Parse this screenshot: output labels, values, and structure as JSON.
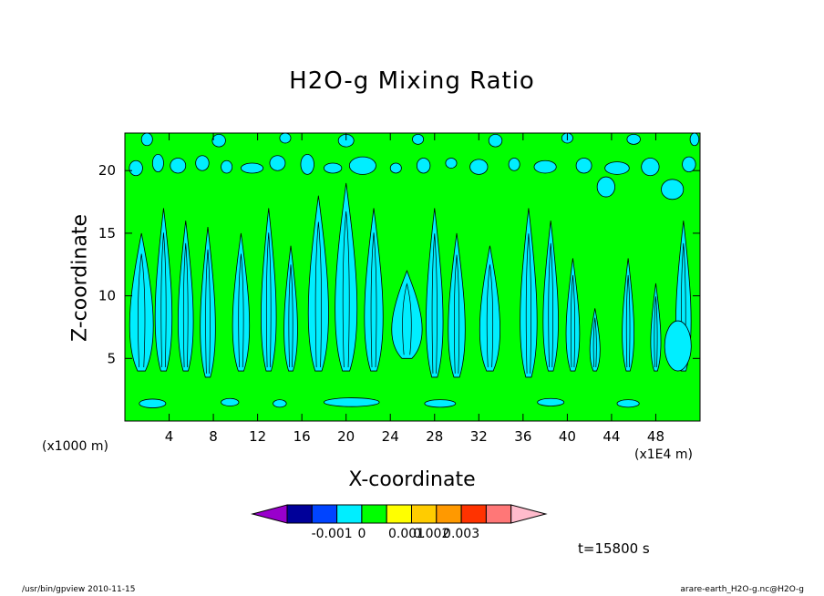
{
  "chart_data": {
    "type": "contour",
    "title": "H2O-g Mixing Ratio",
    "xlabel": "X-coordinate",
    "ylabel": "Z-coordinate",
    "x_unit_label": "(x1000 m)",
    "x_scale_label": "(x1E4 m)",
    "xlim": [
      0,
      52
    ],
    "ylim": [
      0,
      23
    ],
    "x_ticks": [
      4,
      8,
      12,
      16,
      20,
      24,
      28,
      32,
      36,
      40,
      44,
      48
    ],
    "y_ticks": [
      5,
      10,
      15,
      20
    ],
    "background_level_color": "#00ff00",
    "feature_color": "#00eeff",
    "colorbar": {
      "colors": [
        "#9900cc",
        "#000099",
        "#0044ff",
        "#00eeff",
        "#00ff00",
        "#ffff00",
        "#ffcc00",
        "#ff9900",
        "#ff3300",
        "#ff7777",
        "#ffbbcc"
      ],
      "labels": [
        "-0.001",
        "0",
        "0.001",
        "0.002",
        "0.003"
      ]
    },
    "plumes": [
      {
        "x": 1.5,
        "base": 4,
        "top": 15,
        "w": 1.4
      },
      {
        "x": 3.5,
        "base": 4,
        "top": 17,
        "w": 1.0
      },
      {
        "x": 5.5,
        "base": 4,
        "top": 16,
        "w": 0.9
      },
      {
        "x": 7.5,
        "base": 3.5,
        "top": 15.5,
        "w": 0.9
      },
      {
        "x": 10.5,
        "base": 4,
        "top": 15,
        "w": 1.0
      },
      {
        "x": 13.0,
        "base": 4,
        "top": 17,
        "w": 0.9
      },
      {
        "x": 15.0,
        "base": 4,
        "top": 14,
        "w": 0.8
      },
      {
        "x": 17.5,
        "base": 4,
        "top": 18,
        "w": 1.2
      },
      {
        "x": 20.0,
        "base": 4,
        "top": 19,
        "w": 1.3
      },
      {
        "x": 22.5,
        "base": 4,
        "top": 17,
        "w": 1.1
      },
      {
        "x": 25.5,
        "base": 5,
        "top": 12,
        "w": 1.8
      },
      {
        "x": 28.0,
        "base": 3.5,
        "top": 17,
        "w": 1.0
      },
      {
        "x": 30.0,
        "base": 3.5,
        "top": 15,
        "w": 1.0
      },
      {
        "x": 33.0,
        "base": 4,
        "top": 14,
        "w": 1.2
      },
      {
        "x": 36.5,
        "base": 3.5,
        "top": 17,
        "w": 1.0
      },
      {
        "x": 38.5,
        "base": 4,
        "top": 16,
        "w": 0.9
      },
      {
        "x": 40.5,
        "base": 4,
        "top": 13,
        "w": 0.8
      },
      {
        "x": 42.5,
        "base": 4,
        "top": 9,
        "w": 0.6
      },
      {
        "x": 45.5,
        "base": 4,
        "top": 13,
        "w": 0.7
      },
      {
        "x": 48.0,
        "base": 4,
        "top": 11,
        "w": 0.6
      },
      {
        "x": 50.5,
        "base": 4,
        "top": 16,
        "w": 0.9
      }
    ],
    "patches": [
      {
        "x": 1.0,
        "y": 20.2,
        "rx": 0.6,
        "ry": 0.6
      },
      {
        "x": 3.0,
        "y": 20.6,
        "rx": 0.5,
        "ry": 0.7
      },
      {
        "x": 4.8,
        "y": 20.4,
        "rx": 0.7,
        "ry": 0.6
      },
      {
        "x": 7.0,
        "y": 20.6,
        "rx": 0.6,
        "ry": 0.6
      },
      {
        "x": 9.2,
        "y": 20.3,
        "rx": 0.5,
        "ry": 0.5
      },
      {
        "x": 11.5,
        "y": 20.2,
        "rx": 1.0,
        "ry": 0.4
      },
      {
        "x": 13.8,
        "y": 20.6,
        "rx": 0.7,
        "ry": 0.6
      },
      {
        "x": 16.5,
        "y": 20.5,
        "rx": 0.6,
        "ry": 0.8
      },
      {
        "x": 18.8,
        "y": 20.2,
        "rx": 0.8,
        "ry": 0.4
      },
      {
        "x": 21.5,
        "y": 20.4,
        "rx": 1.2,
        "ry": 0.7
      },
      {
        "x": 24.5,
        "y": 20.2,
        "rx": 0.5,
        "ry": 0.4
      },
      {
        "x": 27.0,
        "y": 20.4,
        "rx": 0.6,
        "ry": 0.6
      },
      {
        "x": 29.5,
        "y": 20.6,
        "rx": 0.5,
        "ry": 0.4
      },
      {
        "x": 32.0,
        "y": 20.3,
        "rx": 0.8,
        "ry": 0.6
      },
      {
        "x": 35.2,
        "y": 20.5,
        "rx": 0.5,
        "ry": 0.5
      },
      {
        "x": 38.0,
        "y": 20.3,
        "rx": 1.0,
        "ry": 0.5
      },
      {
        "x": 41.5,
        "y": 20.4,
        "rx": 0.7,
        "ry": 0.6
      },
      {
        "x": 44.5,
        "y": 20.2,
        "rx": 1.1,
        "ry": 0.5
      },
      {
        "x": 47.5,
        "y": 20.3,
        "rx": 0.8,
        "ry": 0.7
      },
      {
        "x": 51.0,
        "y": 20.5,
        "rx": 0.6,
        "ry": 0.6
      },
      {
        "x": 2.0,
        "y": 22.5,
        "rx": 0.5,
        "ry": 0.5
      },
      {
        "x": 8.5,
        "y": 22.4,
        "rx": 0.6,
        "ry": 0.5
      },
      {
        "x": 14.5,
        "y": 22.6,
        "rx": 0.5,
        "ry": 0.4
      },
      {
        "x": 20.0,
        "y": 22.4,
        "rx": 0.7,
        "ry": 0.5
      },
      {
        "x": 26.5,
        "y": 22.5,
        "rx": 0.5,
        "ry": 0.4
      },
      {
        "x": 33.5,
        "y": 22.4,
        "rx": 0.6,
        "ry": 0.5
      },
      {
        "x": 40.0,
        "y": 22.6,
        "rx": 0.5,
        "ry": 0.4
      },
      {
        "x": 46.0,
        "y": 22.5,
        "rx": 0.6,
        "ry": 0.4
      },
      {
        "x": 51.5,
        "y": 22.5,
        "rx": 0.4,
        "ry": 0.5
      },
      {
        "x": 2.5,
        "y": 1.4,
        "rx": 1.2,
        "ry": 0.35
      },
      {
        "x": 9.5,
        "y": 1.5,
        "rx": 0.8,
        "ry": 0.3
      },
      {
        "x": 14.0,
        "y": 1.4,
        "rx": 0.6,
        "ry": 0.3
      },
      {
        "x": 20.5,
        "y": 1.5,
        "rx": 2.5,
        "ry": 0.35
      },
      {
        "x": 28.5,
        "y": 1.4,
        "rx": 1.4,
        "ry": 0.3
      },
      {
        "x": 38.5,
        "y": 1.5,
        "rx": 1.2,
        "ry": 0.3
      },
      {
        "x": 45.5,
        "y": 1.4,
        "rx": 1.0,
        "ry": 0.3
      },
      {
        "x": 50.0,
        "y": 6.0,
        "rx": 1.2,
        "ry": 2.0
      },
      {
        "x": 49.5,
        "y": 18.5,
        "rx": 1.0,
        "ry": 0.8
      },
      {
        "x": 43.5,
        "y": 18.7,
        "rx": 0.8,
        "ry": 0.8
      }
    ]
  },
  "labels": {
    "title": "H2O-g Mixing Ratio",
    "xlabel": "X-coordinate",
    "ylabel": "Z-coordinate",
    "x_unit": "(x1000 m)",
    "x_scale": "(x1E4 m)",
    "timestamp": "t=15800 s",
    "footer_left": "/usr/bin/gpview   2010-11-15",
    "footer_right": "arare-earth_H2O-g.nc@H2O-g"
  }
}
